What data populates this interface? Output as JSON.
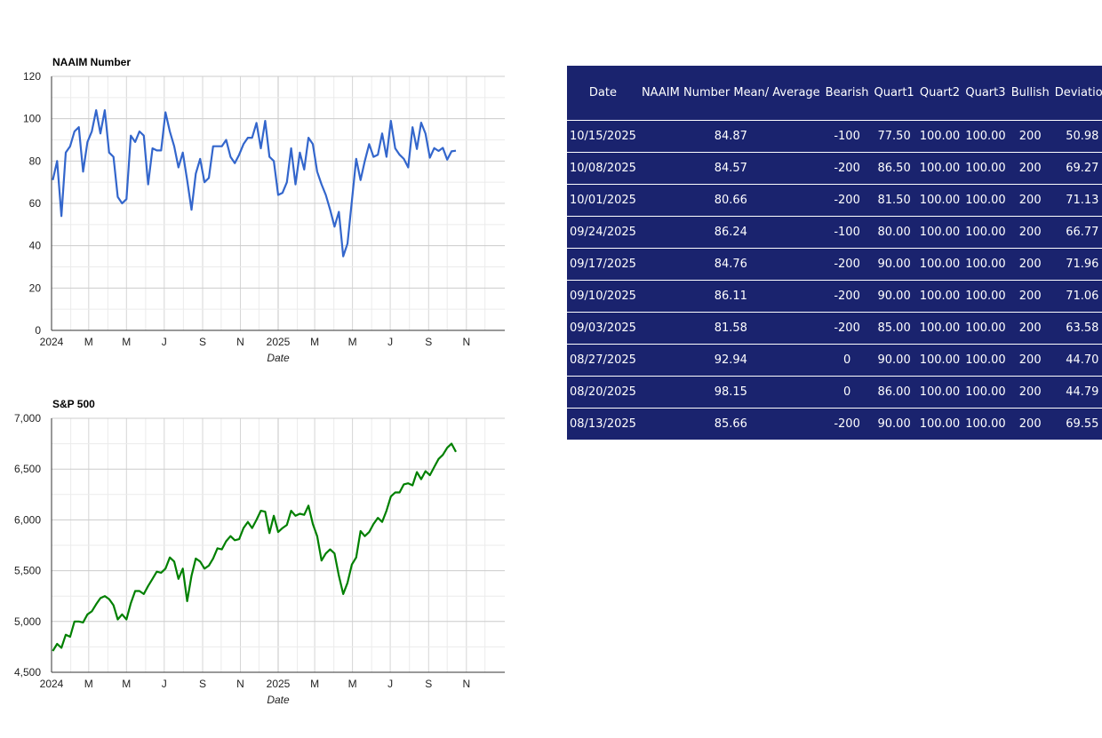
{
  "chart_data": [
    {
      "type": "line",
      "title": "NAAIM Number",
      "xlabel": "Date",
      "ylabel": "",
      "ylim": [
        0,
        120
      ],
      "yticks": [
        0,
        20,
        40,
        60,
        80,
        100,
        120
      ],
      "x_tick_labels": [
        "2024",
        "M",
        "M",
        "J",
        "S",
        "N",
        "2025",
        "M",
        "M",
        "J",
        "S",
        "N"
      ],
      "x_range": [
        "2024-01-01",
        "2025-12-31"
      ],
      "grid": true,
      "line_color": "#3366cc",
      "series": [
        {
          "x": [
            "2024-01-03",
            "2024-01-10",
            "2024-01-17",
            "2024-01-24",
            "2024-01-31",
            "2024-02-07",
            "2024-02-14",
            "2024-02-21",
            "2024-02-28",
            "2024-03-06",
            "2024-03-13",
            "2024-03-20",
            "2024-03-27",
            "2024-04-03",
            "2024-04-10",
            "2024-04-17",
            "2024-04-24",
            "2024-05-01",
            "2024-05-08",
            "2024-05-15",
            "2024-05-22",
            "2024-05-29",
            "2024-06-05",
            "2024-06-12",
            "2024-06-19",
            "2024-06-26",
            "2024-07-03",
            "2024-07-10",
            "2024-07-17",
            "2024-07-24",
            "2024-07-31",
            "2024-08-07",
            "2024-08-14",
            "2024-08-21",
            "2024-08-28",
            "2024-09-04",
            "2024-09-11",
            "2024-09-18",
            "2024-09-25",
            "2024-10-02",
            "2024-10-09",
            "2024-10-16",
            "2024-10-23",
            "2024-10-30",
            "2024-11-06",
            "2024-11-13",
            "2024-11-20",
            "2024-11-27",
            "2024-12-04",
            "2024-12-11",
            "2024-12-18",
            "2024-12-25",
            "2025-01-01",
            "2025-01-08",
            "2025-01-15",
            "2025-01-22",
            "2025-01-29",
            "2025-02-05",
            "2025-02-12",
            "2025-02-19",
            "2025-02-26",
            "2025-03-05",
            "2025-03-12",
            "2025-03-19",
            "2025-03-26",
            "2025-04-02",
            "2025-04-09",
            "2025-04-16",
            "2025-04-23",
            "2025-04-30",
            "2025-05-07",
            "2025-05-14",
            "2025-05-21",
            "2025-05-28",
            "2025-06-04",
            "2025-06-11",
            "2025-06-18",
            "2025-06-25",
            "2025-07-02",
            "2025-07-09",
            "2025-07-16",
            "2025-07-23",
            "2025-07-30",
            "2025-08-06",
            "2025-08-13",
            "2025-08-20",
            "2025-08-27",
            "2025-09-03",
            "2025-09-10",
            "2025-09-17",
            "2025-09-24",
            "2025-10-01",
            "2025-10-08",
            "2025-10-15"
          ],
          "values": [
            71,
            80,
            54,
            84,
            87,
            94,
            96,
            75,
            89,
            94,
            104,
            93,
            104,
            84,
            82,
            63,
            60,
            62,
            92,
            89,
            94,
            92,
            69,
            86,
            85,
            85,
            103,
            94,
            87,
            77,
            84,
            71,
            57,
            74,
            81,
            70,
            72,
            87,
            87,
            87,
            90,
            82,
            79,
            83,
            88,
            91,
            91,
            98,
            86,
            99,
            82,
            80,
            64,
            65,
            70,
            86,
            69,
            84,
            76,
            91,
            88,
            75,
            69,
            64,
            57,
            49,
            56,
            35,
            41,
            61,
            81,
            71,
            80,
            88,
            82,
            83,
            93,
            82,
            99,
            86,
            83,
            81,
            77,
            96,
            85.66,
            98.15,
            92.94,
            81.58,
            86.11,
            84.76,
            86.24,
            80.66,
            84.57,
            84.87
          ]
        }
      ]
    },
    {
      "type": "line",
      "title": "S&P 500",
      "xlabel": "Date",
      "ylabel": "",
      "ylim": [
        4500,
        7000
      ],
      "yticks": [
        4500,
        5000,
        5500,
        6000,
        6500,
        7000
      ],
      "ytick_labels": [
        "4,500",
        "5,000",
        "5,500",
        "6,000",
        "6,500",
        "7,000"
      ],
      "x_tick_labels": [
        "2024",
        "M",
        "M",
        "J",
        "S",
        "N",
        "2025",
        "M",
        "M",
        "J",
        "S",
        "N"
      ],
      "x_range": [
        "2024-01-01",
        "2025-12-31"
      ],
      "grid": true,
      "line_color": "#008000",
      "series": [
        {
          "x": [
            "2024-01-03",
            "2024-01-10",
            "2024-01-17",
            "2024-01-24",
            "2024-01-31",
            "2024-02-07",
            "2024-02-14",
            "2024-02-21",
            "2024-02-28",
            "2024-03-06",
            "2024-03-13",
            "2024-03-20",
            "2024-03-27",
            "2024-04-03",
            "2024-04-10",
            "2024-04-17",
            "2024-04-24",
            "2024-05-01",
            "2024-05-08",
            "2024-05-15",
            "2024-05-22",
            "2024-05-29",
            "2024-06-05",
            "2024-06-12",
            "2024-06-19",
            "2024-06-26",
            "2024-07-03",
            "2024-07-10",
            "2024-07-17",
            "2024-07-24",
            "2024-07-31",
            "2024-08-07",
            "2024-08-14",
            "2024-08-21",
            "2024-08-28",
            "2024-09-04",
            "2024-09-11",
            "2024-09-18",
            "2024-09-25",
            "2024-10-02",
            "2024-10-09",
            "2024-10-16",
            "2024-10-23",
            "2024-10-30",
            "2024-11-06",
            "2024-11-13",
            "2024-11-20",
            "2024-11-27",
            "2024-12-04",
            "2024-12-11",
            "2024-12-18",
            "2024-12-25",
            "2025-01-01",
            "2025-01-08",
            "2025-01-15",
            "2025-01-22",
            "2025-01-29",
            "2025-02-05",
            "2025-02-12",
            "2025-02-19",
            "2025-02-26",
            "2025-03-05",
            "2025-03-12",
            "2025-03-19",
            "2025-03-26",
            "2025-04-02",
            "2025-04-09",
            "2025-04-16",
            "2025-04-23",
            "2025-04-30",
            "2025-05-07",
            "2025-05-14",
            "2025-05-21",
            "2025-05-28",
            "2025-06-04",
            "2025-06-11",
            "2025-06-18",
            "2025-06-25",
            "2025-07-02",
            "2025-07-09",
            "2025-07-16",
            "2025-07-23",
            "2025-07-30",
            "2025-08-06",
            "2025-08-13",
            "2025-08-20",
            "2025-08-27",
            "2025-09-03",
            "2025-09-10",
            "2025-09-17",
            "2025-09-24",
            "2025-10-01",
            "2025-10-08",
            "2025-10-15"
          ],
          "values": [
            4710,
            4780,
            4740,
            4870,
            4850,
            5000,
            5000,
            4990,
            5070,
            5100,
            5170,
            5230,
            5250,
            5220,
            5160,
            5020,
            5070,
            5020,
            5180,
            5300,
            5300,
            5270,
            5350,
            5420,
            5490,
            5480,
            5520,
            5630,
            5590,
            5420,
            5520,
            5200,
            5450,
            5620,
            5590,
            5520,
            5550,
            5620,
            5720,
            5710,
            5790,
            5840,
            5800,
            5810,
            5920,
            5980,
            5920,
            6000,
            6090,
            6080,
            5870,
            6040,
            5880,
            5920,
            5950,
            6090,
            6040,
            6060,
            6050,
            6140,
            5960,
            5840,
            5600,
            5670,
            5710,
            5670,
            5450,
            5270,
            5380,
            5560,
            5630,
            5890,
            5840,
            5880,
            5960,
            6020,
            5980,
            6090,
            6230,
            6270,
            6270,
            6350,
            6360,
            6340,
            6470,
            6400,
            6480,
            6440,
            6520,
            6600,
            6640,
            6710,
            6750,
            6670
          ]
        }
      ]
    }
  ],
  "table": {
    "columns": [
      "Date",
      "NAAIM Number Mean/ Average",
      "Bearish",
      "Quart1",
      "Quart2",
      "Quart3",
      "Bullish",
      "Deviation"
    ],
    "rows": [
      [
        "10/15/2025",
        "84.87",
        "-100",
        "77.50",
        "100.00",
        "100.00",
        "200",
        "50.98"
      ],
      [
        "10/08/2025",
        "84.57",
        "-200",
        "86.50",
        "100.00",
        "100.00",
        "200",
        "69.27"
      ],
      [
        "10/01/2025",
        "80.66",
        "-200",
        "81.50",
        "100.00",
        "100.00",
        "200",
        "71.13"
      ],
      [
        "09/24/2025",
        "86.24",
        "-100",
        "80.00",
        "100.00",
        "100.00",
        "200",
        "66.77"
      ],
      [
        "09/17/2025",
        "84.76",
        "-200",
        "90.00",
        "100.00",
        "100.00",
        "200",
        "71.96"
      ],
      [
        "09/10/2025",
        "86.11",
        "-200",
        "90.00",
        "100.00",
        "100.00",
        "200",
        "71.06"
      ],
      [
        "09/03/2025",
        "81.58",
        "-200",
        "85.00",
        "100.00",
        "100.00",
        "200",
        "63.58"
      ],
      [
        "08/27/2025",
        "92.94",
        "0",
        "90.00",
        "100.00",
        "100.00",
        "200",
        "44.70"
      ],
      [
        "08/20/2025",
        "98.15",
        "0",
        "86.00",
        "100.00",
        "100.00",
        "200",
        "44.79"
      ],
      [
        "08/13/2025",
        "85.66",
        "-200",
        "90.00",
        "100.00",
        "100.00",
        "200",
        "69.55"
      ]
    ],
    "colors": {
      "background": "#1a236e",
      "text": "#ffffff"
    }
  }
}
